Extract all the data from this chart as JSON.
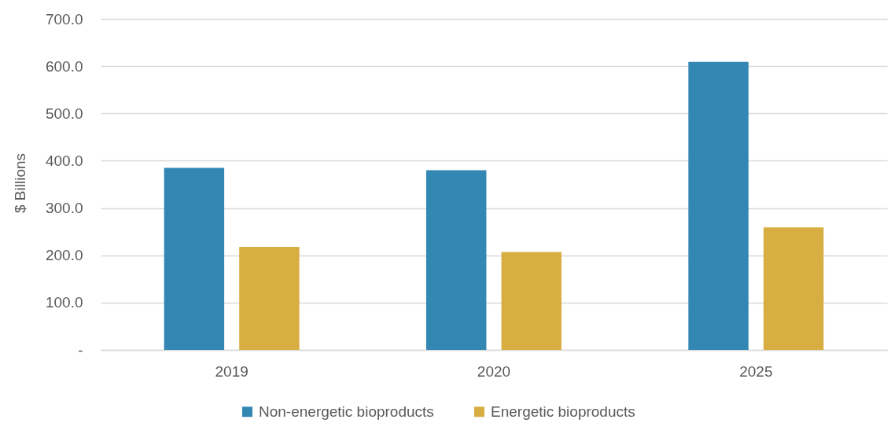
{
  "chart_data": {
    "type": "bar",
    "ylabel": "$ Billions",
    "categories": [
      "2019",
      "2020",
      "2025"
    ],
    "series": [
      {
        "name": "Non-energetic bioproducts",
        "color": "#3287b3",
        "values": [
          385,
          380,
          609
        ]
      },
      {
        "name": "Energetic bioproducts",
        "color": "#d8ae42",
        "values": [
          218,
          207,
          259
        ]
      }
    ],
    "ylim": [
      0,
      700
    ],
    "yticks": [
      {
        "value": 0,
        "label": "-"
      },
      {
        "value": 100,
        "label": "100.0"
      },
      {
        "value": 200,
        "label": "200.0"
      },
      {
        "value": 300,
        "label": "300.0"
      },
      {
        "value": 400,
        "label": "400.0"
      },
      {
        "value": 500,
        "label": "500.0"
      },
      {
        "value": 600,
        "label": "600.0"
      },
      {
        "value": 700,
        "label": "700.0"
      }
    ],
    "grid": "y",
    "legend": "bottom"
  }
}
